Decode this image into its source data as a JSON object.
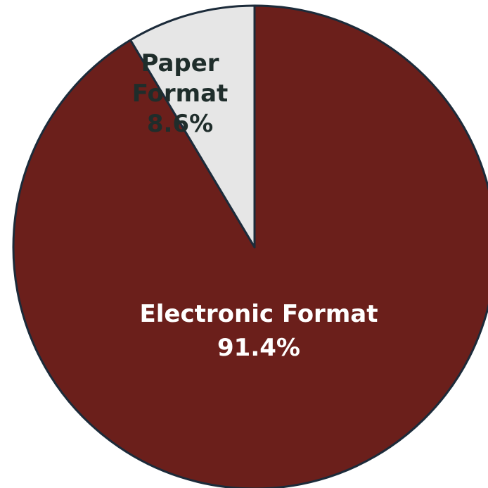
{
  "chart_data": {
    "type": "pie",
    "slices": [
      {
        "name": "Electronic Format",
        "value": 91.4,
        "label_lines": [
          "Electronic Format",
          "91.4%"
        ],
        "color": "#6b1f1b",
        "text_color": "#ffffff"
      },
      {
        "name": "Paper Format",
        "value": 8.6,
        "label_lines": [
          "Paper",
          "Format",
          "8.6%"
        ],
        "color": "#e6e6e6",
        "text_color": "#1f2d2b"
      }
    ],
    "start_angle": "12 o'clock",
    "direction": "clockwise",
    "outline_color": "#1c2b3a",
    "legend": "none"
  }
}
